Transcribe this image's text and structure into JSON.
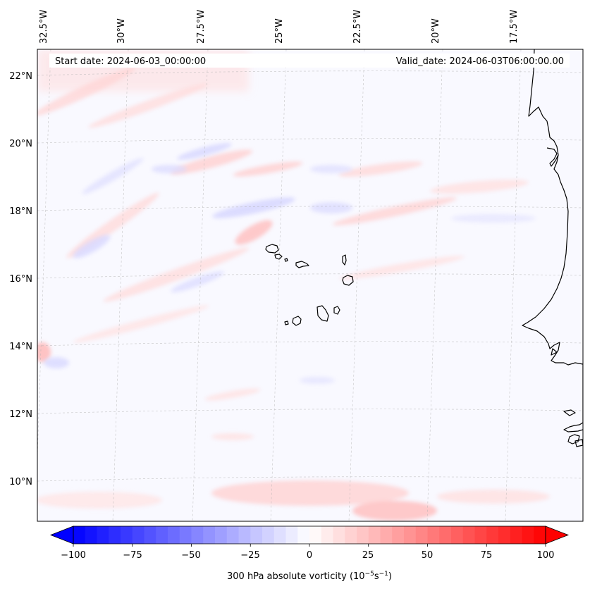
{
  "map": {
    "start_date": "Start date: 2024-06-03_00:00:00",
    "valid_date": "Valid_date: 2024-06-03T06:00:00.00",
    "longitude_labels": [
      "32.5°W",
      "30°W",
      "27.5°W",
      "25°W",
      "22.5°W",
      "20°W",
      "17.5°W"
    ],
    "latitude_labels": [
      "22°N",
      "20°N",
      "18°N",
      "16°N",
      "14°N",
      "12°N",
      "10°N"
    ],
    "field_colors": {
      "positive": "#ff0000",
      "negative": "#0000ff",
      "neutral": "#ffffff",
      "coastline": "#000000",
      "gridline": "#b0b0b0"
    }
  },
  "colorbar": {
    "label_prefix": "300 hPa absolute vorticity (10",
    "label_exp1": "−5",
    "label_mid": "s",
    "label_exp2": "−1",
    "label_suffix": ")",
    "tick_labels": [
      "−100",
      "−75",
      "−50",
      "−25",
      "0",
      "25",
      "50",
      "75",
      "100"
    ],
    "range": [
      -100,
      100
    ],
    "step": 5,
    "extend": "both"
  }
}
